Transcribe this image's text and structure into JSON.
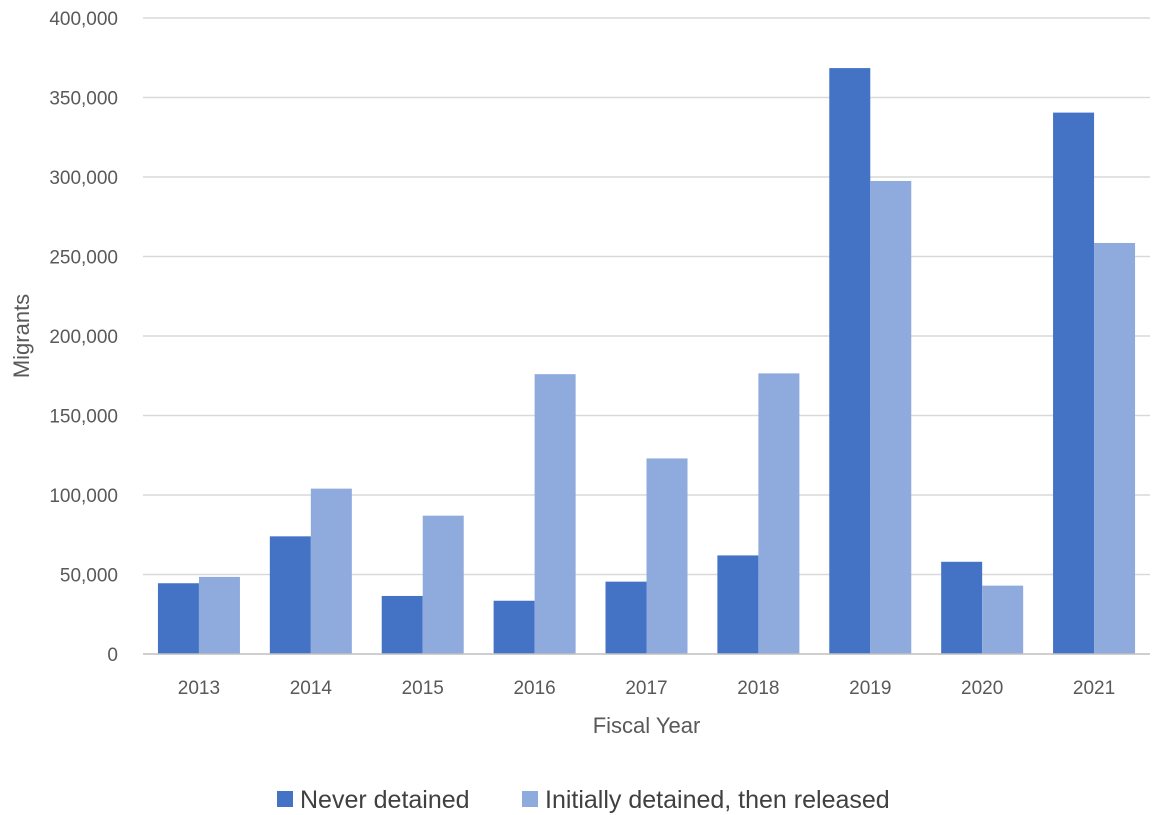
{
  "chart_data": {
    "type": "bar",
    "title": "",
    "xlabel": "Fiscal Year",
    "ylabel": "Migrants",
    "categories": [
      "2013",
      "2014",
      "2015",
      "2016",
      "2017",
      "2018",
      "2019",
      "2020",
      "2021"
    ],
    "series": [
      {
        "name": "Never detained",
        "color": "#4472C4",
        "values": [
          44500,
          74000,
          36500,
          33500,
          45500,
          62000,
          368500,
          58000,
          340500
        ]
      },
      {
        "name": "Initially detained, then released",
        "color": "#8FAADC",
        "values": [
          48500,
          104000,
          87000,
          176000,
          123000,
          176500,
          297500,
          43000,
          258500
        ]
      }
    ],
    "ylim": [
      0,
      400000
    ],
    "yticks": [
      0,
      50000,
      100000,
      150000,
      200000,
      250000,
      300000,
      350000,
      400000
    ],
    "ytick_labels": [
      "0",
      "50,000",
      "100,000",
      "150,000",
      "200,000",
      "250,000",
      "300,000",
      "350,000",
      "400,000"
    ],
    "grid": true,
    "legend_position": "bottom"
  }
}
